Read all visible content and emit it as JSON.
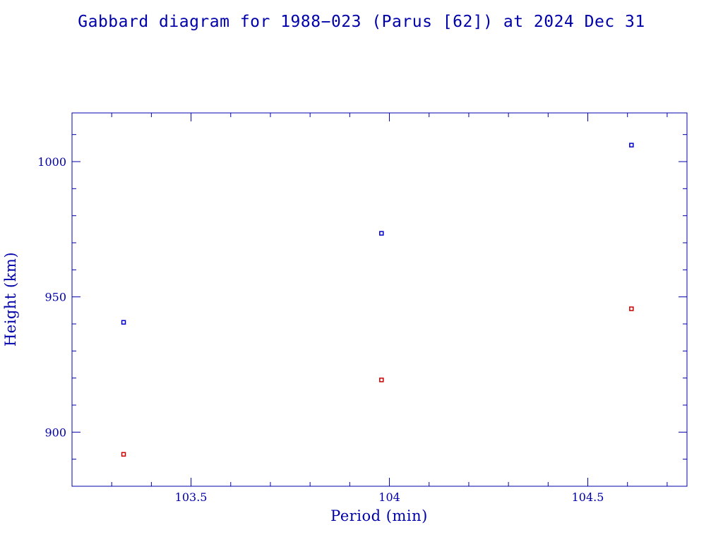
{
  "chart_data": {
    "type": "scatter",
    "title": "Gabbard diagram for 1988−023 (Parus [62]) at 2024 Dec 31",
    "xlabel": "Period (min)",
    "ylabel": "Height (km)",
    "xlim": [
      103.2,
      104.75
    ],
    "ylim": [
      880,
      1018
    ],
    "x_ticks": [
      {
        "value": 103.5,
        "label": "103.5"
      },
      {
        "value": 104.0,
        "label": "104"
      },
      {
        "value": 104.5,
        "label": "104.5"
      }
    ],
    "y_ticks": [
      {
        "value": 900,
        "label": "900"
      },
      {
        "value": 950,
        "label": "950"
      },
      {
        "value": 1000,
        "label": "1000"
      }
    ],
    "x_minor_step": 0.1,
    "y_minor_step": 10,
    "grid": false,
    "series": [
      {
        "color": "#0000cc",
        "points": [
          [
            103.33,
            940.6
          ],
          [
            103.98,
            973.5
          ],
          [
            104.61,
            1006.1
          ]
        ]
      },
      {
        "color": "#cc0000",
        "points": [
          [
            103.33,
            891.8
          ],
          [
            103.98,
            919.3
          ],
          [
            104.61,
            945.6
          ]
        ]
      }
    ]
  },
  "colors": {
    "axis": "#0000aa",
    "text": "#0000aa",
    "background": "#ffffff"
  }
}
